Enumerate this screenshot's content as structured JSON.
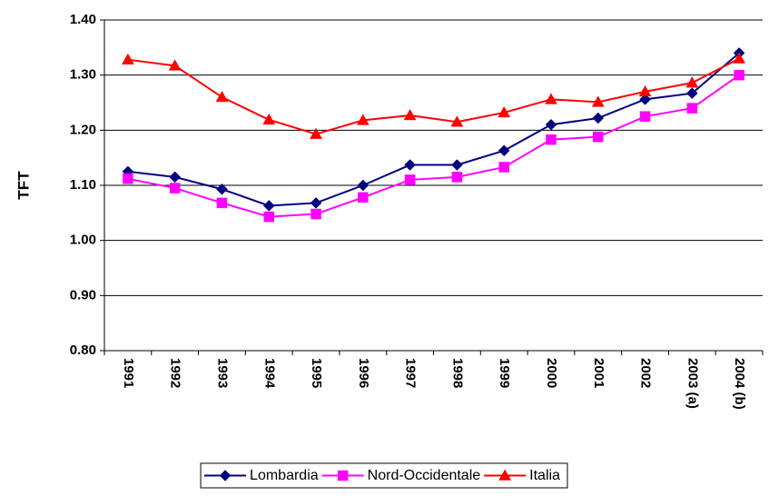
{
  "chart_data": {
    "type": "line",
    "y_label": "TFT",
    "categories": [
      "1991",
      "1992",
      "1993",
      "1994",
      "1995",
      "1996",
      "1997",
      "1998",
      "1999",
      "2000",
      "2001",
      "2002",
      "2003 (a)",
      "2004 (b)"
    ],
    "series": [
      {
        "name": "Lombardia",
        "color": "#000080",
        "marker": "diamond",
        "values": [
          1.125,
          1.115,
          1.093,
          1.063,
          1.068,
          1.1,
          1.137,
          1.137,
          1.163,
          1.21,
          1.222,
          1.256,
          1.267,
          1.34
        ]
      },
      {
        "name": "Nord-Occidentale",
        "color": "#ff00ff",
        "marker": "square",
        "values": [
          1.112,
          1.095,
          1.068,
          1.043,
          1.048,
          1.078,
          1.11,
          1.115,
          1.133,
          1.183,
          1.188,
          1.225,
          1.24,
          1.3
        ]
      },
      {
        "name": "Italia",
        "color": "#ff0000",
        "marker": "triangle",
        "values": [
          1.328,
          1.317,
          1.26,
          1.219,
          1.193,
          1.218,
          1.227,
          1.215,
          1.232,
          1.256,
          1.251,
          1.27,
          1.286,
          1.33
        ]
      }
    ],
    "ylim": [
      0.8,
      1.4
    ],
    "yticks": [
      {
        "value": 0.8,
        "label": "0.80"
      },
      {
        "value": 0.9,
        "label": "0.90"
      },
      {
        "value": 1.0,
        "label": "1.00"
      },
      {
        "value": 1.1,
        "label": "1.10"
      },
      {
        "value": 1.2,
        "label": "1.20"
      },
      {
        "value": 1.3,
        "label": "1.30"
      },
      {
        "value": 1.4,
        "label": "1.40"
      }
    ],
    "grid": true,
    "legend": "bottom"
  }
}
